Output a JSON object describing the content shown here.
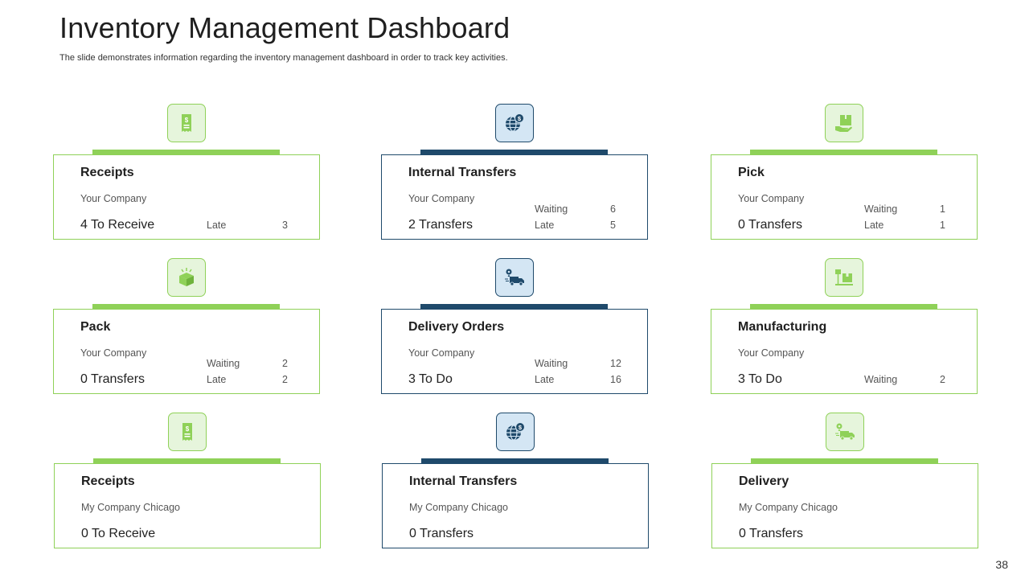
{
  "header": {
    "title": "Inventory Management Dashboard",
    "subtitle": "The slide demonstrates information regarding the inventory management dashboard in order to track key activities."
  },
  "page_number": "38",
  "colors": {
    "green": "#8fd158",
    "blue": "#1f4a6b"
  },
  "cards": [
    {
      "title": "Receipts",
      "company": "Your Company",
      "main": "4 To Receive",
      "icon": "receipt-icon",
      "stats": [
        {
          "label": "Late",
          "value": "3"
        }
      ]
    },
    {
      "title": "Internal Transfers",
      "company": "Your Company",
      "main": "2 Transfers",
      "icon": "globe-dollar-icon",
      "stats": [
        {
          "label": "Waiting",
          "value": "6"
        },
        {
          "label": "Late",
          "value": "5"
        }
      ]
    },
    {
      "title": "Pick",
      "company": "Your Company",
      "main": "0 Transfers",
      "icon": "hand-box-icon",
      "stats": [
        {
          "label": "Waiting",
          "value": "1"
        },
        {
          "label": "Late",
          "value": "1"
        }
      ]
    },
    {
      "title": "Pack",
      "company": "Your Company",
      "main": "0 Transfers",
      "icon": "open-box-icon",
      "stats": [
        {
          "label": "Waiting",
          "value": "2"
        },
        {
          "label": "Late",
          "value": "2"
        }
      ]
    },
    {
      "title": "Delivery Orders",
      "company": "Your Company",
      "main": "3 To Do",
      "icon": "delivery-truck-icon",
      "stats": [
        {
          "label": "Waiting",
          "value": "12"
        },
        {
          "label": "Late",
          "value": "16"
        }
      ]
    },
    {
      "title": "Manufacturing",
      "company": "Your Company",
      "main": "3 To Do",
      "icon": "conveyor-box-icon",
      "stats": [
        {
          "label": "Waiting",
          "value": "2"
        }
      ]
    },
    {
      "title": "Receipts",
      "company": "My Company  Chicago",
      "main": "0 To Receive",
      "icon": "receipt-icon",
      "stats": []
    },
    {
      "title": "Internal Transfers",
      "company": "My Company  Chicago",
      "main": "0 Transfers",
      "icon": "globe-dollar-icon",
      "stats": []
    },
    {
      "title": "Delivery",
      "company": "My Company  Chicago",
      "main": "0 Transfers",
      "icon": "delivery-truck-icon",
      "stats": []
    }
  ]
}
